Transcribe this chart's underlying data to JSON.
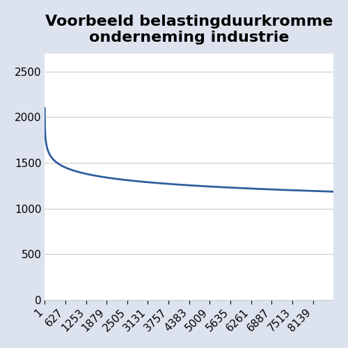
{
  "title_line1": "Voorbeeld belastingduurkromme",
  "title_line2": "onderneming industrie",
  "title_fontsize": 16,
  "title_fontweight": "bold",
  "line_color": "#2f5f9e",
  "line_width": 2.0,
  "background_outer": "#dde3ee",
  "background_inner": "#ffffff",
  "ylim": [
    0,
    2700
  ],
  "yticks": [
    0,
    500,
    1000,
    1500,
    2000,
    2500
  ],
  "xtick_labels": [
    "1",
    "627",
    "1253",
    "1879",
    "2505",
    "3131",
    "3757",
    "4383",
    "5009",
    "5635",
    "6261",
    "6887",
    "7513",
    "8139"
  ],
  "xtick_positions": [
    1,
    627,
    1253,
    1879,
    2505,
    3131,
    3757,
    4383,
    5009,
    5635,
    6261,
    6887,
    7513,
    8139
  ],
  "xlim": [
    1,
    8760
  ],
  "grid_color": "#cccccc",
  "grid_linewidth": 0.8,
  "tick_fontsize": 11
}
